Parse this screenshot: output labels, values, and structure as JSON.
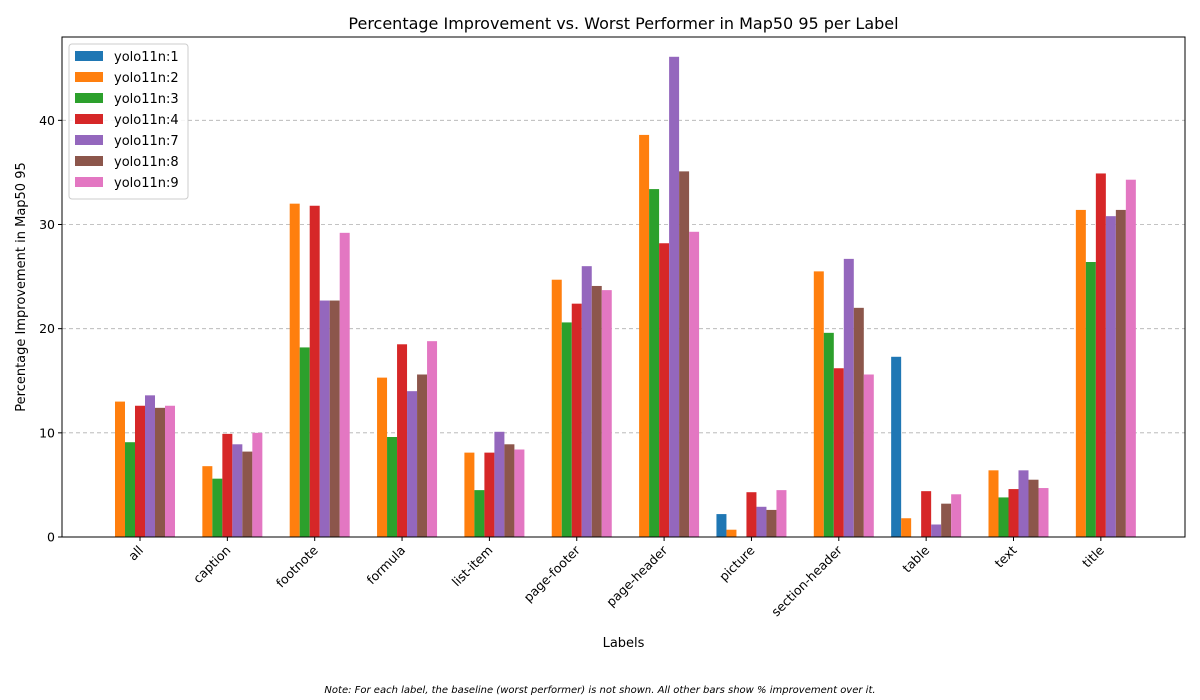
{
  "chart_data": {
    "type": "bar",
    "title": "Percentage Improvement vs. Worst Performer in Map50 95 per Label",
    "xlabel": "Labels",
    "ylabel": "Percentage Improvement in Map50 95",
    "ylim": [
      0,
      48
    ],
    "yticks": [
      0,
      10,
      20,
      30,
      40
    ],
    "grid": "y-dashed",
    "legend_position": "top-left",
    "note": "Note: For each label, the baseline (worst performer) is not shown. All other bars show % improvement over it.",
    "categories": [
      "all",
      "caption",
      "footnote",
      "formula",
      "list-item",
      "page-footer",
      "page-header",
      "picture",
      "section-header",
      "table",
      "text",
      "title"
    ],
    "series": [
      {
        "name": "yolo11n:1",
        "color": "#1f77b4",
        "values": [
          null,
          null,
          null,
          null,
          null,
          null,
          null,
          2.2,
          null,
          17.3,
          null,
          null
        ]
      },
      {
        "name": "yolo11n:2",
        "color": "#ff7f0e",
        "values": [
          13.0,
          6.8,
          32.0,
          15.3,
          8.1,
          24.7,
          38.6,
          0.7,
          25.5,
          1.8,
          6.4,
          31.4
        ]
      },
      {
        "name": "yolo11n:3",
        "color": "#2ca02c",
        "values": [
          9.1,
          5.6,
          18.2,
          9.6,
          4.5,
          20.6,
          33.4,
          null,
          19.6,
          null,
          3.8,
          26.4
        ]
      },
      {
        "name": "yolo11n:4",
        "color": "#d62728",
        "values": [
          12.6,
          9.9,
          31.8,
          18.5,
          8.1,
          22.4,
          28.2,
          4.3,
          16.2,
          4.4,
          4.6,
          34.9
        ]
      },
      {
        "name": "yolo11n:7",
        "color": "#9467bd",
        "values": [
          13.6,
          8.9,
          22.7,
          14.0,
          10.1,
          26.0,
          46.1,
          2.9,
          26.7,
          1.2,
          6.4,
          30.8
        ]
      },
      {
        "name": "yolo11n:8",
        "color": "#8c564b",
        "values": [
          12.4,
          8.2,
          22.7,
          15.6,
          8.9,
          24.1,
          35.1,
          2.6,
          22.0,
          3.2,
          5.5,
          31.4
        ]
      },
      {
        "name": "yolo11n:9",
        "color": "#e377c2",
        "values": [
          12.6,
          10.0,
          29.2,
          18.8,
          8.4,
          23.7,
          29.3,
          4.5,
          15.6,
          4.1,
          4.7,
          34.3
        ]
      }
    ]
  }
}
